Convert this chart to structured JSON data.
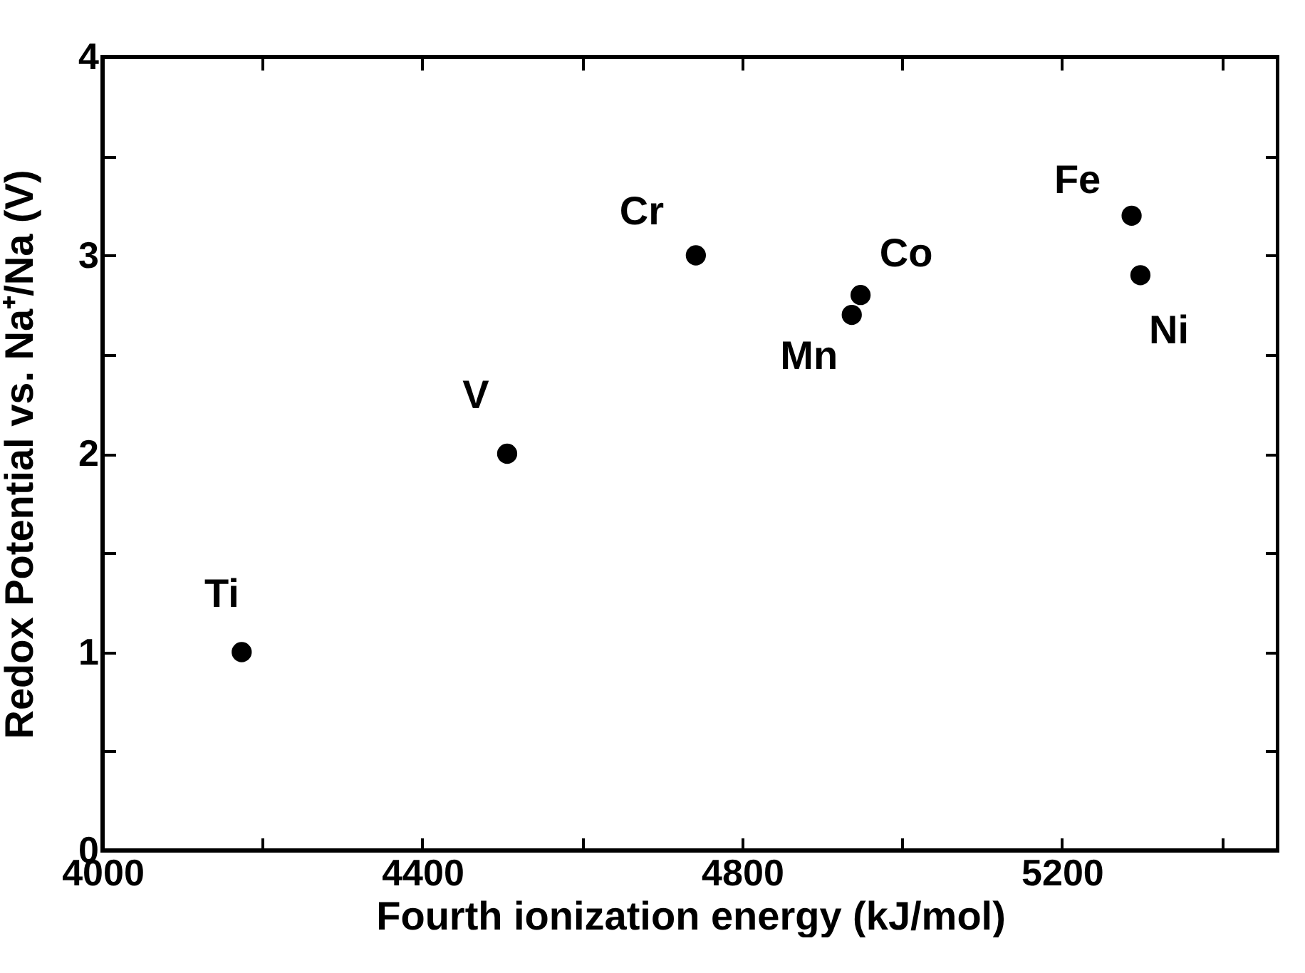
{
  "chart_data": {
    "type": "scatter",
    "xlabel": "Fourth ionization energy (kJ/mol)",
    "ylabel": "Redox Potential vs. Na⁺/Na (V)",
    "x": [
      4174,
      4506,
      4742,
      4937,
      4948,
      5287,
      5298
    ],
    "values": [
      1,
      2,
      3,
      2.7,
      2.8,
      3.2,
      2.9
    ],
    "color": "#000000",
    "marker": "circle",
    "annotations": [
      {
        "text": "Ti",
        "x": 4174,
        "y": 1
      },
      {
        "text": "V",
        "x": 4506,
        "y": 2
      },
      {
        "text": "Cr",
        "x": 4742,
        "y": 3
      },
      {
        "text": "Mn",
        "x": 4937,
        "y": 2.7
      },
      {
        "text": "Co",
        "x": 4948,
        "y": 2.8
      },
      {
        "text": "Fe",
        "x": 5287,
        "y": 3.2
      },
      {
        "text": "Ni",
        "x": 5298,
        "y": 2.9
      }
    ],
    "xlim": [
      4000,
      5470
    ],
    "ylim": [
      0,
      4
    ],
    "xticks": [
      4000,
      {
        "value": 4200,
        "label": null
      },
      4400,
      {
        "value": 4600,
        "label": null
      },
      4800,
      {
        "value": 5000,
        "label": null
      },
      5200,
      {
        "value": 5400,
        "label": null
      }
    ],
    "yticks": [
      0,
      {
        "value": 0.5,
        "label": null
      },
      1,
      {
        "value": 1.5,
        "label": null
      },
      2,
      {
        "value": 2.5,
        "label": null
      },
      3,
      {
        "value": 3.5,
        "label": null
      },
      4
    ],
    "grid": false
  }
}
